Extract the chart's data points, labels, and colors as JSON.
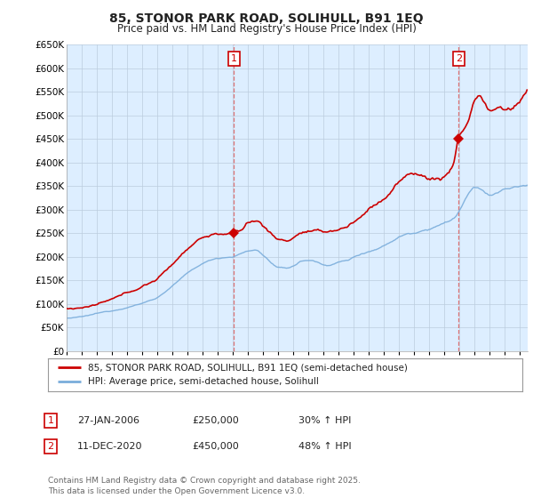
{
  "title": "85, STONOR PARK ROAD, SOLIHULL, B91 1EQ",
  "subtitle": "Price paid vs. HM Land Registry's House Price Index (HPI)",
  "ylim": [
    0,
    650000
  ],
  "yticks": [
    0,
    50000,
    100000,
    150000,
    200000,
    250000,
    300000,
    350000,
    400000,
    450000,
    500000,
    550000,
    600000,
    650000
  ],
  "ytick_labels": [
    "£0",
    "£50K",
    "£100K",
    "£150K",
    "£200K",
    "£250K",
    "£300K",
    "£350K",
    "£400K",
    "£450K",
    "£500K",
    "£550K",
    "£600K",
    "£650K"
  ],
  "line_color_house": "#cc0000",
  "line_color_hpi": "#7aaddb",
  "chart_bg": "#ddeeff",
  "purchase1_year_val": 2006.07,
  "purchase1_price": 250000,
  "purchase2_year_val": 2020.94,
  "purchase2_price": 450000,
  "purchase1_date": "27-JAN-2006",
  "purchase1_pct": "30% ↑ HPI",
  "purchase2_date": "11-DEC-2020",
  "purchase2_pct": "48% ↑ HPI",
  "legend_line1": "85, STONOR PARK ROAD, SOLIHULL, B91 1EQ (semi-detached house)",
  "legend_line2": "HPI: Average price, semi-detached house, Solihull",
  "footer": "Contains HM Land Registry data © Crown copyright and database right 2025.\nThis data is licensed under the Open Government Licence v3.0.",
  "bg_color": "#ffffff",
  "grid_color": "#bbccdd"
}
